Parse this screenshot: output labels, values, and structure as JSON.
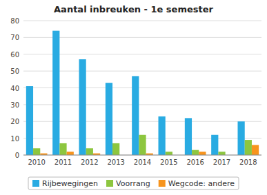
{
  "chart_data": {
    "type": "bar",
    "title": "Aantal inbreuken - 1e semester",
    "categories": [
      "2010",
      "2011",
      "2012",
      "2013",
      "2014",
      "2015",
      "2016",
      "2017",
      "2018"
    ],
    "series": [
      {
        "name": "Rijbewegingen",
        "color": "#29ABE2",
        "values": [
          41,
          74,
          57,
          43,
          47,
          23,
          22,
          12,
          20
        ]
      },
      {
        "name": "Voorrang",
        "color": "#8DC63F",
        "values": [
          4,
          7,
          4,
          7,
          12,
          2,
          3,
          2,
          9
        ]
      },
      {
        "name": "Wegcode: andere",
        "color": "#F7941D",
        "values": [
          1,
          2,
          1,
          0,
          1,
          0,
          2,
          0,
          6
        ]
      }
    ],
    "ylim": [
      0,
      80
    ],
    "yticks": [
      0,
      10,
      20,
      30,
      40,
      50,
      60,
      70,
      80
    ],
    "grid": true,
    "legend": "bottom"
  }
}
